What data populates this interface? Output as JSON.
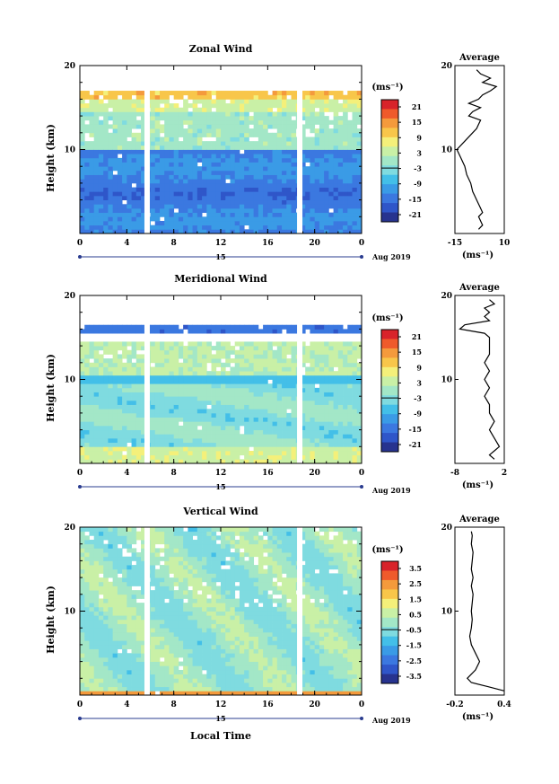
{
  "figure": {
    "date_label": "Aug 2019",
    "day_label": "15",
    "x_axis_label": "Local Time",
    "y_axis_label": "Height (km)",
    "unit_label": "(ms⁻¹)",
    "avg_title": "Average",
    "avg_unit_label": "(ms⁻¹)"
  },
  "colors": {
    "colormap": [
      "#27338f",
      "#2f56c9",
      "#3b78e0",
      "#3a9be6",
      "#43bfe8",
      "#7fdbe0",
      "#a3e7c7",
      "#c9f0a6",
      "#f4f07a",
      "#f8c64a",
      "#f49a3c",
      "#ef5a2b",
      "#d8232a"
    ]
  },
  "chart_data": [
    {
      "type": "heatmap",
      "title": "Zonal Wind",
      "x_ticks": [
        "0",
        "4",
        "8",
        "12",
        "16",
        "20",
        "0"
      ],
      "y_ticks": [
        "10",
        "20"
      ],
      "colorbar_ticks": [
        "21",
        "15",
        "9",
        "3",
        "-3",
        "-9",
        "-15",
        "-21"
      ],
      "colorbar_range": [
        -24,
        24
      ],
      "missing_columns_hours": [
        5.5,
        18.5
      ],
      "profile": {
        "title": "Average",
        "x_ticks": [
          "-15",
          "10"
        ],
        "xlim": [
          -15,
          10
        ],
        "height_km": [
          0.5,
          1,
          1.5,
          2,
          2.5,
          3,
          3.5,
          4,
          4.5,
          5,
          6,
          7,
          8,
          9,
          10,
          11,
          12,
          12.5,
          13,
          13.5,
          14,
          14.5,
          15,
          15.5,
          16,
          16.5,
          17,
          17.5,
          18,
          18.5,
          19,
          19.5
        ],
        "value": [
          -3,
          -1,
          -2,
          -3,
          -1,
          -2,
          -3,
          -4,
          -5,
          -6,
          -7,
          -9,
          -10,
          -12,
          -14,
          -10,
          -6,
          -4,
          -3,
          -2,
          -8,
          -6,
          -2,
          -8,
          -3,
          -1,
          3,
          6,
          -1,
          3,
          -2,
          -4
        ]
      }
    },
    {
      "type": "heatmap",
      "title": "Meridional Wind",
      "x_ticks": [
        "0",
        "4",
        "8",
        "12",
        "16",
        "20",
        "0"
      ],
      "y_ticks": [
        "10",
        "20"
      ],
      "colorbar_ticks": [
        "21",
        "15",
        "9",
        "3",
        "-3",
        "-9",
        "-15",
        "-21"
      ],
      "colorbar_range": [
        -24,
        24
      ],
      "missing_columns_hours": [
        5.5,
        18.5
      ],
      "profile": {
        "title": "Average",
        "x_ticks": [
          "-8",
          "2"
        ],
        "xlim": [
          -8,
          2
        ],
        "height_km": [
          0.5,
          1,
          1.5,
          2,
          3,
          4,
          5,
          6,
          7,
          8,
          9,
          10,
          11,
          12,
          13,
          14,
          15,
          15.5,
          16,
          16.5,
          17,
          17.5,
          18,
          18.5,
          19,
          19.5
        ],
        "value": [
          0,
          -1,
          0,
          1,
          0,
          -1,
          0,
          -1,
          -1,
          -2,
          -1,
          -2,
          -1,
          -2,
          -1,
          -1,
          -1,
          -2,
          -7,
          -6,
          -1,
          -2,
          -1,
          -2,
          0,
          -1
        ]
      }
    },
    {
      "type": "heatmap",
      "title": "Vertical Wind",
      "x_ticks": [
        "0",
        "4",
        "8",
        "12",
        "16",
        "20",
        "0"
      ],
      "y_ticks": [
        "10",
        "20"
      ],
      "colorbar_ticks": [
        "3.5",
        "2.5",
        "1.5",
        "0.5",
        "-0.5",
        "-1.5",
        "-2.5",
        "-3.5"
      ],
      "colorbar_range": [
        -4,
        4
      ],
      "missing_columns_hours": [
        5.5,
        18.5
      ],
      "profile": {
        "title": "Average",
        "x_ticks": [
          "-0.2",
          "0.4"
        ],
        "xlim": [
          -0.2,
          0.4
        ],
        "height_km": [
          0.5,
          1,
          1.5,
          2,
          3,
          4,
          5,
          6,
          7,
          8,
          9,
          10,
          11,
          12,
          13,
          14,
          15,
          16,
          17,
          18,
          19,
          19.5
        ],
        "value": [
          0.4,
          0.2,
          0.0,
          -0.05,
          0.05,
          0.1,
          0.05,
          0.0,
          -0.02,
          0.0,
          0.01,
          0.0,
          0.01,
          0.02,
          0.0,
          0.02,
          0.0,
          0.01,
          0.02,
          0.0,
          0.01,
          0.0
        ]
      }
    }
  ]
}
